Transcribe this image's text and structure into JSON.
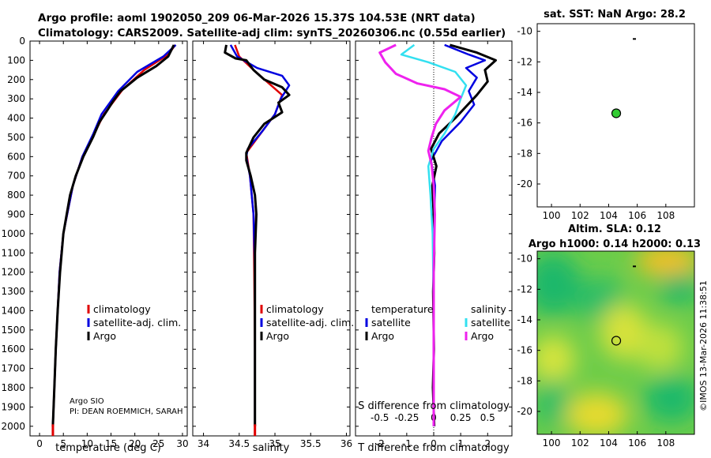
{
  "header": {
    "line1": "Argo profile: aoml 1902050_209 06-Mar-2026 15.37S 104.53E (NRT data)",
    "line2": "Climatology: CARS2009. Satellite-adj clim: synTS_20260306.nc (0.55d earlier)"
  },
  "colors": {
    "climatology": "#e00000",
    "satellite": "#0000e0",
    "argo": "#000000",
    "sat_temp": "#33e0f0",
    "sal_diff": "#ee22ee"
  },
  "footer": {
    "institution": "Argo SIO",
    "pi": "PI: DEAN ROEMMICH, SARAH"
  },
  "stamp": "©IMOS 13-Mar-2026 11:38:51",
  "chart_data": [
    {
      "type": "line",
      "title": "",
      "xlabel": "temperature (deg C)",
      "ylabel": "",
      "xlim": [
        -2,
        31
      ],
      "ylim": [
        2050,
        0
      ],
      "xticks": [
        "0",
        "5",
        "10",
        "15",
        "20",
        "25",
        "30"
      ],
      "yticks": [
        "0",
        "100",
        "200",
        "300",
        "400",
        "500",
        "600",
        "700",
        "800",
        "900",
        "1000",
        "1100",
        "1200",
        "1300",
        "1400",
        "1500",
        "1600",
        "1700",
        "1800",
        "1900",
        "2000"
      ],
      "legend": [
        "climatology",
        "satellite-adj. clim.",
        "Argo"
      ],
      "series": [
        {
          "name": "climatology",
          "color": "#e00000",
          "points": [
            [
              28.5,
              20
            ],
            [
              27,
              70
            ],
            [
              22,
              150
            ],
            [
              17.5,
              250
            ],
            [
              13.5,
              380
            ],
            [
              11.5,
              480
            ],
            [
              9,
              600
            ],
            [
              7,
              750
            ],
            [
              5.8,
              900
            ],
            [
              5,
              1000
            ],
            [
              4.2,
              1200
            ],
            [
              3.8,
              1400
            ],
            [
              3.4,
              1600
            ],
            [
              3.1,
              1800
            ],
            [
              2.8,
              2000
            ],
            [
              2.8,
              2050
            ]
          ]
        },
        {
          "name": "satellite-adj. clim.",
          "color": "#0000e0",
          "points": [
            [
              28.6,
              20
            ],
            [
              26,
              80
            ],
            [
              20.5,
              160
            ],
            [
              16.5,
              260
            ],
            [
              13,
              380
            ],
            [
              11.3,
              480
            ],
            [
              9,
              600
            ],
            [
              7,
              750
            ],
            [
              5.8,
              900
            ],
            [
              5,
              1000
            ],
            [
              4.2,
              1200
            ],
            [
              3.8,
              1400
            ],
            [
              3.4,
              1600
            ],
            [
              3.1,
              1800
            ],
            [
              2.8,
              2000
            ]
          ]
        },
        {
          "name": "Argo",
          "color": "#000000",
          "points": [
            [
              28.2,
              20
            ],
            [
              27.6,
              50
            ],
            [
              27,
              80
            ],
            [
              24.5,
              130
            ],
            [
              20.5,
              190
            ],
            [
              17,
              260
            ],
            [
              15.5,
              310
            ],
            [
              14.2,
              360
            ],
            [
              12.6,
              420
            ],
            [
              11.2,
              500
            ],
            [
              9.2,
              600
            ],
            [
              7.6,
              700
            ],
            [
              6.4,
              800
            ],
            [
              5.7,
              900
            ],
            [
              5,
              1000
            ],
            [
              4.3,
              1200
            ],
            [
              3.8,
              1400
            ],
            [
              3.4,
              1600
            ],
            [
              3.1,
              1800
            ],
            [
              2.8,
              2000
            ]
          ]
        }
      ]
    },
    {
      "type": "line",
      "xlabel": "salinity",
      "xlim": [
        33.85,
        36.05
      ],
      "ylim": [
        2050,
        0
      ],
      "xticks": [
        "34",
        "34.5",
        "35",
        "35.5",
        "36"
      ],
      "legend": [
        "climatology",
        "satellite-adj. clim.",
        "Argo"
      ],
      "series": [
        {
          "name": "climatology",
          "color": "#e00000",
          "points": [
            [
              34.44,
              20
            ],
            [
              34.5,
              80
            ],
            [
              34.7,
              150
            ],
            [
              35.1,
              280
            ],
            [
              35.0,
              380
            ],
            [
              34.8,
              480
            ],
            [
              34.6,
              580
            ],
            [
              34.65,
              700
            ],
            [
              34.7,
              900
            ],
            [
              34.71,
              1200
            ],
            [
              34.72,
              1600
            ],
            [
              34.72,
              2050
            ]
          ]
        },
        {
          "name": "satellite-adj. clim.",
          "color": "#0000e0",
          "points": [
            [
              34.38,
              20
            ],
            [
              34.47,
              80
            ],
            [
              34.75,
              140
            ],
            [
              35.1,
              180
            ],
            [
              35.2,
              230
            ],
            [
              35.08,
              300
            ],
            [
              35.0,
              380
            ],
            [
              34.82,
              470
            ],
            [
              34.62,
              560
            ],
            [
              34.6,
              600
            ],
            [
              34.65,
              700
            ],
            [
              34.7,
              900
            ],
            [
              34.72,
              1200
            ],
            [
              34.72,
              1600
            ],
            [
              34.72,
              2000
            ]
          ]
        },
        {
          "name": "Argo",
          "color": "#000000",
          "points": [
            [
              34.32,
              20
            ],
            [
              34.3,
              60
            ],
            [
              34.45,
              90
            ],
            [
              34.6,
              100
            ],
            [
              34.7,
              150
            ],
            [
              34.85,
              200
            ],
            [
              35.1,
              240
            ],
            [
              35.2,
              280
            ],
            [
              35.05,
              320
            ],
            [
              35.1,
              370
            ],
            [
              34.85,
              430
            ],
            [
              34.7,
              500
            ],
            [
              34.6,
              580
            ],
            [
              34.6,
              620
            ],
            [
              34.66,
              700
            ],
            [
              34.72,
              800
            ],
            [
              34.74,
              900
            ],
            [
              34.72,
              1100
            ],
            [
              34.72,
              1300
            ],
            [
              34.72,
              1600
            ],
            [
              34.72,
              2000
            ]
          ]
        }
      ]
    },
    {
      "type": "line",
      "xlabel": "T difference from climatology",
      "xlim": [
        -2.9,
        2.9
      ],
      "ylim": [
        2050,
        0
      ],
      "xticks": [
        "-2",
        "-1",
        "0",
        "1",
        "2"
      ],
      "top_label": "S difference from climatology",
      "top_ticks": [
        "-0.5",
        "-0.25",
        "0",
        "0.25",
        "0.5"
      ],
      "legend_headers": [
        "temperature",
        "salinity"
      ],
      "legend": [
        "satellite",
        "Argo",
        "satellite",
        "Argo"
      ],
      "series": [
        {
          "name": "temperature satellite",
          "color": "#0000e0",
          "points": [
            [
              0.4,
              20
            ],
            [
              1.3,
              70
            ],
            [
              1.9,
              100
            ],
            [
              1.2,
              140
            ],
            [
              1.6,
              190
            ],
            [
              1.3,
              260
            ],
            [
              1.5,
              330
            ],
            [
              1.0,
              420
            ],
            [
              0.3,
              520
            ],
            [
              -0.1,
              620
            ],
            [
              0.05,
              750
            ],
            [
              0,
              1000
            ],
            [
              0,
              1500
            ],
            [
              0,
              2000
            ]
          ]
        },
        {
          "name": "temperature Argo",
          "color": "#000000",
          "points": [
            [
              0.6,
              20
            ],
            [
              1.6,
              60
            ],
            [
              2.3,
              100
            ],
            [
              1.9,
              150
            ],
            [
              2.0,
              210
            ],
            [
              1.6,
              280
            ],
            [
              1.2,
              340
            ],
            [
              0.8,
              400
            ],
            [
              0.2,
              480
            ],
            [
              -0.1,
              560
            ],
            [
              0.1,
              650
            ],
            [
              -0.05,
              750
            ],
            [
              0,
              900
            ],
            [
              0.02,
              1100
            ],
            [
              -0.02,
              1300
            ],
            [
              0.01,
              1600
            ],
            [
              -0.03,
              1800
            ],
            [
              0.02,
              2000
            ]
          ]
        },
        {
          "name": "salinity satellite",
          "color": "#33e0f0",
          "points": [
            [
              -0.18,
              20
            ],
            [
              -0.3,
              70
            ],
            [
              -0.05,
              110
            ],
            [
              0.2,
              160
            ],
            [
              0.3,
              230
            ],
            [
              0.25,
              300
            ],
            [
              0.2,
              380
            ],
            [
              0.1,
              480
            ],
            [
              0,
              560
            ],
            [
              -0.05,
              650
            ],
            [
              -0.03,
              800
            ],
            [
              -0.01,
              1000
            ],
            [
              0,
              1400
            ],
            [
              0,
              2000
            ]
          ]
        },
        {
          "name": "salinity Argo",
          "color": "#ee22ee",
          "points": [
            [
              -0.35,
              20
            ],
            [
              -0.5,
              60
            ],
            [
              -0.45,
              110
            ],
            [
              -0.35,
              170
            ],
            [
              -0.15,
              220
            ],
            [
              0.1,
              250
            ],
            [
              0.25,
              290
            ],
            [
              0.1,
              360
            ],
            [
              0.02,
              430
            ],
            [
              -0.02,
              500
            ],
            [
              -0.05,
              570
            ],
            [
              -0.02,
              640
            ],
            [
              0,
              750
            ],
            [
              0.01,
              900
            ],
            [
              0,
              1200
            ],
            [
              0,
              1600
            ],
            [
              0,
              2000
            ]
          ]
        }
      ]
    },
    {
      "type": "scatter",
      "title": "sat. SST: NaN Argo: 28.2",
      "xlim": [
        99,
        110
      ],
      "ylim": [
        -21.5,
        -9.5
      ],
      "xticks": [
        "100",
        "102",
        "104",
        "106",
        "108"
      ],
      "yticks": [
        "-10",
        "-12",
        "-14",
        "-16",
        "-18",
        "-20"
      ],
      "points": [
        {
          "x": 104.53,
          "y": -15.37,
          "color": "#33cc33"
        }
      ],
      "markers": [
        {
          "x": 105.8,
          "y": -10.5
        }
      ]
    },
    {
      "type": "heatmap",
      "title": "Altim. SLA: 0.12",
      "subtitle": "Argo h1000: 0.14 h2000: 0.13",
      "xlim": [
        99,
        110
      ],
      "ylim": [
        -21.5,
        -9.5
      ],
      "xticks": [
        "100",
        "102",
        "104",
        "106",
        "108"
      ],
      "yticks": [
        "-10",
        "-12",
        "-14",
        "-16",
        "-18",
        "-20"
      ],
      "points": [
        {
          "x": 104.53,
          "y": -15.37
        }
      ],
      "markers": [
        {
          "x": 105.8,
          "y": -10.5
        }
      ]
    }
  ]
}
